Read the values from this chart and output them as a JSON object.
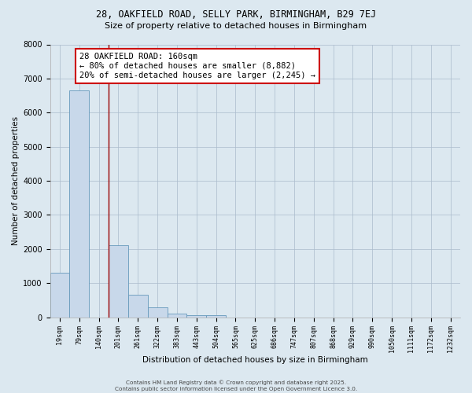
{
  "title_line1": "28, OAKFIELD ROAD, SELLY PARK, BIRMINGHAM, B29 7EJ",
  "title_line2": "Size of property relative to detached houses in Birmingham",
  "xlabel": "Distribution of detached houses by size in Birmingham",
  "ylabel": "Number of detached properties",
  "categories": [
    "19sqm",
    "79sqm",
    "140sqm",
    "201sqm",
    "261sqm",
    "322sqm",
    "383sqm",
    "443sqm",
    "504sqm",
    "565sqm",
    "625sqm",
    "686sqm",
    "747sqm",
    "807sqm",
    "868sqm",
    "929sqm",
    "990sqm",
    "1050sqm",
    "1111sqm",
    "1172sqm",
    "1232sqm"
  ],
  "values": [
    1300,
    6650,
    0,
    2100,
    650,
    290,
    100,
    70,
    50,
    0,
    0,
    0,
    0,
    0,
    0,
    0,
    0,
    0,
    0,
    0,
    0
  ],
  "bar_color": "#c8d8ea",
  "bar_edge_color": "#6699bb",
  "property_line_x": 2.5,
  "property_line_color": "#990000",
  "annotation_text": "28 OAKFIELD ROAD: 160sqm\n← 80% of detached houses are smaller (8,882)\n20% of semi-detached houses are larger (2,245) →",
  "annotation_box_color": "white",
  "annotation_box_edge_color": "#cc0000",
  "ylim": [
    0,
    8000
  ],
  "yticks": [
    0,
    1000,
    2000,
    3000,
    4000,
    5000,
    6000,
    7000,
    8000
  ],
  "background_color": "#dce8f0",
  "plot_bg_color": "#dce8f0",
  "grid_color": "#aabbcc",
  "footer_line1": "Contains HM Land Registry data © Crown copyright and database right 2025.",
  "footer_line2": "Contains public sector information licensed under the Open Government Licence 3.0.",
  "title_fontsize": 8.5,
  "subtitle_fontsize": 8.0,
  "annotation_fontsize": 7.5
}
